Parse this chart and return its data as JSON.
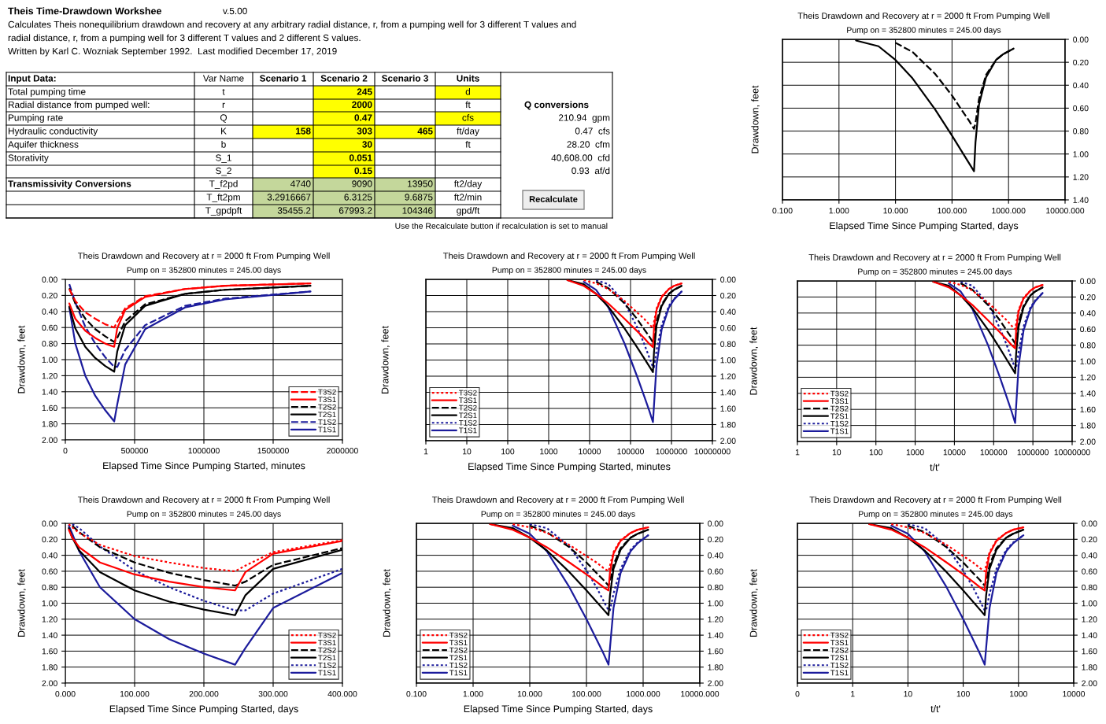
{
  "chart_data": [
    {
      "type": "other",
      "title": "Theis Time-Drawdown Workshee",
      "subtitle": "v.5.00",
      "annotations": [
        "Calculates Theis nonequilibrium drawdown and recovery at any arbitrary radial distance, r, from a pumping well for 3 different T values and",
        "radial distance, r, from a pumping well for 3 different T values and 2 different S values.",
        "Written by Karl C. Wozniak September 1992.  Last modified December 17, 2019",
        "Input Data:",
        "Var Name",
        "Scenario 1",
        "Scenario 2",
        "Scenario 3",
        "Units",
        "Total pumping time",
        "t",
        "245",
        "d",
        "Radial distance from pumped well:",
        "r",
        "2000",
        "ft",
        "Q conversions",
        "Pumping rate",
        "Q",
        "0.47",
        "cfs",
        "210.94  gpm",
        "Hydraulic conductivity",
        "K",
        "158",
        "303",
        "465",
        "ft/day",
        "0.47  cfs",
        "Aquifer thickness",
        "b",
        "30",
        "ft",
        "28.20  cfm",
        "Storativity",
        "S_1",
        "0.051",
        "40,608.00  cfd",
        "S_2",
        "0.15",
        "0.93  af/d",
        "Transmissivity Conversions",
        "T_f2pd",
        "4740",
        "9090",
        "13950",
        "ft2/day",
        "T_ft2pm",
        "3.2916667",
        "6.3125",
        "9.6875",
        "ft2/min",
        "T_gpdpft",
        "35455.2",
        "67993.2",
        "104346",
        "gpd/ft",
        "Recalculate",
        "Use the Recalculate button if recalculation is set to manual"
      ]
    },
    {
      "type": "line",
      "title": "Theis Drawdown and Recovery at r = 2000 ft From Pumping Well",
      "subtitle": "Pump on = 352800 minutes = 245.00 days",
      "xlabel": "Elapsed Time Since Pumping Started, days",
      "ylabel": "Drawdown, feet",
      "log": "x",
      "grid": true,
      "x": [
        2,
        5,
        10,
        20,
        50,
        100,
        150,
        200,
        245,
        260,
        300,
        400,
        600,
        800,
        1229
      ],
      "xlim": [
        0.1,
        10000
      ],
      "xticks": [
        {
          "value": 0.1,
          "label": "0.100"
        },
        {
          "value": 1,
          "label": "1.000"
        },
        {
          "value": 10,
          "label": "10.000"
        },
        {
          "value": 100,
          "label": "100.000"
        },
        {
          "value": 1000,
          "label": "1000.000"
        },
        {
          "value": 10000,
          "label": "10000.000"
        }
      ],
      "y2lim": [
        1.4,
        0
      ],
      "y2ticks": [
        {
          "value": 0,
          "label": "0.00"
        },
        {
          "value": 0.2,
          "label": "0.20"
        },
        {
          "value": 0.4,
          "label": "0.40"
        },
        {
          "value": 0.6,
          "label": "0.60"
        },
        {
          "value": 0.8,
          "label": "0.80"
        },
        {
          "value": 1.0,
          "label": "1.00"
        },
        {
          "value": 1.2,
          "label": "1.20"
        },
        {
          "value": 1.4,
          "label": "1.40"
        }
      ],
      "series": [
        {
          "color": "#000000",
          "line_style": "dashed",
          "axis": "y2",
          "values": [
            null,
            null,
            0.03,
            0.11,
            0.3,
            0.49,
            0.62,
            0.71,
            0.78,
            0.73,
            0.52,
            0.31,
            0.18,
            0.13,
            0.08
          ]
        },
        {
          "color": "#000000",
          "line_style": "solid",
          "axis": "y2",
          "values": [
            0.01,
            0.06,
            0.18,
            0.34,
            0.61,
            0.84,
            0.98,
            1.08,
            1.15,
            0.9,
            0.57,
            0.33,
            0.18,
            0.13,
            0.08
          ]
        }
      ]
    },
    {
      "type": "line",
      "title": "Theis Drawdown and Recovery at r = 2000 ft From Pumping Well",
      "subtitle": "Pump on = 352800 minutes = 245.00 days",
      "xlabel": "Elapsed Time Since Pumping Started, minutes",
      "ylabel": "Drawdown, feet",
      "grid": true,
      "legend": "bottom right",
      "x": [
        28800,
        72000,
        144000,
        216000,
        288000,
        352800,
        374400,
        432000,
        576000,
        864000,
        1152000,
        1769760
      ],
      "xlim": [
        0,
        2000000
      ],
      "xticks": [
        0,
        500000,
        1000000,
        1500000,
        2000000
      ],
      "ylim": [
        2,
        0
      ],
      "yticks": [
        {
          "value": 0,
          "label": "0.00"
        },
        {
          "value": 0.2,
          "label": "0.20"
        },
        {
          "value": 0.4,
          "label": "0.40"
        },
        {
          "value": 0.6,
          "label": "0.60"
        },
        {
          "value": 0.8,
          "label": "0.80"
        },
        {
          "value": 1.0,
          "label": "1.00"
        },
        {
          "value": 1.2,
          "label": "1.20"
        },
        {
          "value": 1.4,
          "label": "1.40"
        },
        {
          "value": 1.6,
          "label": "1.60"
        },
        {
          "value": 1.8,
          "label": "1.80"
        },
        {
          "value": 2.0,
          "label": "2.00"
        }
      ],
      "series": [
        {
          "name": "T3S2",
          "color": "#ff0000",
          "line_style": "dashed",
          "values": [
            0.12,
            0.27,
            0.41,
            0.49,
            0.56,
            0.6,
            0.53,
            0.36,
            0.21,
            0.12,
            0.08,
            0.05
          ]
        },
        {
          "name": "T3S1",
          "color": "#ff0000",
          "line_style": "solid",
          "values": [
            0.3,
            0.49,
            0.64,
            0.73,
            0.8,
            0.84,
            0.61,
            0.38,
            0.22,
            0.12,
            0.08,
            0.05
          ]
        },
        {
          "name": "T2S2",
          "color": "#000000",
          "line_style": "dashed",
          "values": [
            0.11,
            0.3,
            0.49,
            0.62,
            0.71,
            0.78,
            0.73,
            0.52,
            0.31,
            0.18,
            0.13,
            0.08
          ]
        },
        {
          "name": "T2S1",
          "color": "#000000",
          "line_style": "solid",
          "values": [
            0.34,
            0.61,
            0.84,
            0.98,
            1.08,
            1.15,
            0.9,
            0.57,
            0.33,
            0.18,
            0.13,
            0.08
          ]
        },
        {
          "name": "T1S2",
          "color": "#1c1c9c",
          "line_style": "dashed",
          "values": [
            0.06,
            0.29,
            0.59,
            0.8,
            0.97,
            1.09,
            1.09,
            0.88,
            0.57,
            0.33,
            0.24,
            0.15
          ]
        },
        {
          "name": "T1S1",
          "color": "#1c1c9c",
          "line_style": "solid",
          "values": [
            0.35,
            0.8,
            1.2,
            1.45,
            1.63,
            1.77,
            1.56,
            1.06,
            0.62,
            0.35,
            0.25,
            0.15
          ]
        }
      ]
    },
    {
      "type": "line",
      "title": "Theis Drawdown and Recovery at r = 2000 ft From Pumping Well",
      "subtitle": "Pump on = 352800 minutes = 245.00 days",
      "xlabel": "Elapsed Time Since Pumping Started, minutes",
      "ylabel": "Drawdown, feet",
      "log": "x",
      "grid": true,
      "legend": "bottom left",
      "x": [
        2880,
        7200,
        14400,
        28800,
        72000,
        144000,
        216000,
        288000,
        352800,
        374400,
        432000,
        576000,
        864000,
        1152000,
        1769760
      ],
      "xlim": [
        1,
        10000000
      ],
      "xticks": [
        1,
        10,
        100,
        1000,
        10000,
        100000,
        1000000,
        10000000
      ],
      "y2lim": [
        2,
        0
      ],
      "y2ticks": [
        {
          "value": 0,
          "label": "0.00"
        },
        {
          "value": 0.2,
          "label": "0.20"
        },
        {
          "value": 0.4,
          "label": "0.40"
        },
        {
          "value": 0.6,
          "label": "0.60"
        },
        {
          "value": 0.8,
          "label": "0.80"
        },
        {
          "value": 1.0,
          "label": "1.00"
        },
        {
          "value": 1.2,
          "label": "1.20"
        },
        {
          "value": 1.4,
          "label": "1.40"
        },
        {
          "value": 1.6,
          "label": "1.60"
        },
        {
          "value": 1.8,
          "label": "1.80"
        },
        {
          "value": 2.0,
          "label": "2.00"
        }
      ],
      "series": [
        {
          "name": "T3S2",
          "color": "#ff0000",
          "line_style": "dotted",
          "axis": "y2",
          "values": [
            null,
            0.01,
            0.05,
            0.12,
            0.27,
            0.41,
            0.49,
            0.56,
            0.6,
            0.53,
            0.36,
            0.21,
            0.12,
            0.08,
            0.05
          ]
        },
        {
          "name": "T3S1",
          "color": "#ff0000",
          "line_style": "solid",
          "axis": "y2",
          "values": [
            0.01,
            0.08,
            0.18,
            0.3,
            0.49,
            0.64,
            0.73,
            0.8,
            0.84,
            0.61,
            0.38,
            0.22,
            0.12,
            0.08,
            0.05
          ]
        },
        {
          "name": "T2S2",
          "color": "#000000",
          "line_style": "dashed",
          "axis": "y2",
          "values": [
            null,
            null,
            0.03,
            0.11,
            0.3,
            0.49,
            0.62,
            0.71,
            0.78,
            0.73,
            0.52,
            0.31,
            0.18,
            0.13,
            0.08
          ]
        },
        {
          "name": "T2S1",
          "color": "#000000",
          "line_style": "solid",
          "axis": "y2",
          "values": [
            0.01,
            0.06,
            0.18,
            0.34,
            0.61,
            0.84,
            0.98,
            1.08,
            1.15,
            0.9,
            0.57,
            0.33,
            0.18,
            0.13,
            0.08
          ]
        },
        {
          "name": "T1S2",
          "color": "#1c1c9c",
          "line_style": "dotted",
          "axis": "y2",
          "values": [
            null,
            null,
            0.01,
            0.06,
            0.29,
            0.59,
            0.8,
            0.97,
            1.09,
            1.09,
            0.88,
            0.57,
            0.33,
            0.24,
            0.15
          ]
        },
        {
          "name": "T1S1",
          "color": "#1c1c9c",
          "line_style": "solid",
          "axis": "y2",
          "values": [
            null,
            0.03,
            0.13,
            0.35,
            0.8,
            1.2,
            1.45,
            1.63,
            1.77,
            1.56,
            1.06,
            0.62,
            0.35,
            0.25,
            0.15
          ]
        }
      ]
    },
    {
      "type": "line",
      "title": "Theis Drawdown and Recovery at r = 2000 ft From Pumping Well",
      "subtitle": "Pump on = 352800 minutes = 245.00 days",
      "xlabel": "t/t'",
      "ylabel": "Drawdown, feet",
      "log": "x",
      "grid": true,
      "legend": "bottom left",
      "x": [
        2880,
        7200,
        14400,
        28800,
        72000,
        144000,
        216000,
        288000,
        352800,
        374400,
        432000,
        576000,
        864000,
        1152000,
        1769760
      ],
      "xlim": [
        1,
        10000000
      ],
      "xticks": [
        1,
        10,
        100,
        1000,
        10000,
        100000,
        1000000,
        10000000
      ],
      "y2lim": [
        2,
        0
      ],
      "y2ticks": [
        {
          "value": 0,
          "label": "0.00"
        },
        {
          "value": 0.2,
          "label": "0.20"
        },
        {
          "value": 0.4,
          "label": "0.40"
        },
        {
          "value": 0.6,
          "label": "0.60"
        },
        {
          "value": 0.8,
          "label": "0.80"
        },
        {
          "value": 1.0,
          "label": "1.00"
        },
        {
          "value": 1.2,
          "label": "1.20"
        },
        {
          "value": 1.4,
          "label": "1.40"
        },
        {
          "value": 1.6,
          "label": "1.60"
        },
        {
          "value": 1.8,
          "label": "1.80"
        },
        {
          "value": 2.0,
          "label": "2.00"
        }
      ],
      "series": [
        {
          "name": "T3S2",
          "color": "#ff0000",
          "line_style": "dotted",
          "axis": "y2",
          "values": [
            null,
            0.01,
            0.05,
            0.12,
            0.27,
            0.41,
            0.49,
            0.56,
            0.6,
            0.53,
            0.36,
            0.21,
            0.12,
            0.08,
            0.05
          ]
        },
        {
          "name": "T3S1",
          "color": "#ff0000",
          "line_style": "solid",
          "axis": "y2",
          "values": [
            0.01,
            0.08,
            0.18,
            0.3,
            0.49,
            0.64,
            0.73,
            0.8,
            0.84,
            0.61,
            0.38,
            0.22,
            0.12,
            0.08,
            0.05
          ]
        },
        {
          "name": "T2S2",
          "color": "#000000",
          "line_style": "dashed",
          "axis": "y2",
          "values": [
            null,
            null,
            0.03,
            0.11,
            0.3,
            0.49,
            0.62,
            0.71,
            0.78,
            0.73,
            0.52,
            0.31,
            0.18,
            0.13,
            0.08
          ]
        },
        {
          "name": "T2S1",
          "color": "#000000",
          "line_style": "solid",
          "axis": "y2",
          "values": [
            0.01,
            0.06,
            0.18,
            0.34,
            0.61,
            0.84,
            0.98,
            1.08,
            1.15,
            0.9,
            0.57,
            0.33,
            0.18,
            0.13,
            0.08
          ]
        },
        {
          "name": "T1S2",
          "color": "#1c1c9c",
          "line_style": "dotted",
          "axis": "y2",
          "values": [
            null,
            null,
            0.01,
            0.06,
            0.29,
            0.59,
            0.8,
            0.97,
            1.09,
            1.09,
            0.88,
            0.57,
            0.33,
            0.24,
            0.15
          ]
        },
        {
          "name": "T1S1",
          "color": "#1c1c9c",
          "line_style": "solid",
          "axis": "y2",
          "values": [
            null,
            0.03,
            0.13,
            0.35,
            0.8,
            1.2,
            1.45,
            1.63,
            1.77,
            1.56,
            1.06,
            0.62,
            0.35,
            0.25,
            0.15
          ]
        }
      ]
    },
    {
      "type": "line",
      "title": "Theis Drawdown and Recovery at r = 2000 ft From Pumping Well",
      "subtitle": "Pump on = 352800 minutes = 245.00 days",
      "xlabel": "Elapsed Time Since Pumping Started, days",
      "ylabel": "Drawdown, feet",
      "grid": true,
      "legend": "bottom right",
      "x": [
        5,
        10,
        20,
        50,
        100,
        150,
        200,
        245,
        260,
        300,
        400
      ],
      "xlim": [
        0,
        400
      ],
      "xticks": [
        {
          "value": 0,
          "label": "0.000"
        },
        {
          "value": 100,
          "label": "100.000"
        },
        {
          "value": 200,
          "label": "200.000"
        },
        {
          "value": 300,
          "label": "300.000"
        },
        {
          "value": 400,
          "label": "400.000"
        }
      ],
      "ylim": [
        2,
        0
      ],
      "yticks": [
        {
          "value": 0,
          "label": "0.00"
        },
        {
          "value": 0.2,
          "label": "0.20"
        },
        {
          "value": 0.4,
          "label": "0.40"
        },
        {
          "value": 0.6,
          "label": "0.60"
        },
        {
          "value": 0.8,
          "label": "0.80"
        },
        {
          "value": 1.0,
          "label": "1.00"
        },
        {
          "value": 1.2,
          "label": "1.20"
        },
        {
          "value": 1.4,
          "label": "1.40"
        },
        {
          "value": 1.6,
          "label": "1.60"
        },
        {
          "value": 1.8,
          "label": "1.80"
        },
        {
          "value": 2.0,
          "label": "2.00"
        }
      ],
      "series": [
        {
          "name": "T3S2",
          "color": "#ff0000",
          "line_style": "dotted",
          "values": [
            0.01,
            0.05,
            0.12,
            0.27,
            0.41,
            0.49,
            0.56,
            0.6,
            0.53,
            0.36,
            0.21
          ]
        },
        {
          "name": "T3S1",
          "color": "#ff0000",
          "line_style": "solid",
          "values": [
            0.08,
            0.18,
            0.3,
            0.49,
            0.64,
            0.73,
            0.8,
            0.84,
            0.61,
            0.38,
            0.22
          ]
        },
        {
          "name": "T2S2",
          "color": "#000000",
          "line_style": "dashed",
          "values": [
            null,
            0.03,
            0.11,
            0.3,
            0.49,
            0.62,
            0.71,
            0.78,
            0.73,
            0.52,
            0.31
          ]
        },
        {
          "name": "T2S1",
          "color": "#000000",
          "line_style": "solid",
          "values": [
            0.06,
            0.18,
            0.34,
            0.61,
            0.84,
            0.98,
            1.08,
            1.15,
            0.9,
            0.57,
            0.33
          ]
        },
        {
          "name": "T1S2",
          "color": "#1c1c9c",
          "line_style": "dotted",
          "values": [
            null,
            0.01,
            0.06,
            0.29,
            0.59,
            0.8,
            0.97,
            1.09,
            1.09,
            0.88,
            0.57
          ]
        },
        {
          "name": "T1S1",
          "color": "#1c1c9c",
          "line_style": "solid",
          "values": [
            0.03,
            0.13,
            0.35,
            0.8,
            1.2,
            1.45,
            1.63,
            1.77,
            1.56,
            1.06,
            0.62
          ]
        }
      ]
    },
    {
      "type": "line",
      "title": "Theis Drawdown and Recovery at r = 2000 ft From Pumping Well",
      "subtitle": "Pump on = 352800 minutes = 245.00 days",
      "xlabel": "Elapsed Time Since Pumping Started, days",
      "ylabel": "Drawdown, feet",
      "log": "x",
      "grid": true,
      "legend": "bottom left",
      "x": [
        2,
        5,
        10,
        20,
        50,
        100,
        150,
        200,
        245,
        260,
        300,
        400,
        600,
        800,
        1229
      ],
      "xlim": [
        0.1,
        10000
      ],
      "xticks": [
        {
          "value": 0.1,
          "label": "0.100"
        },
        {
          "value": 1,
          "label": "1.000"
        },
        {
          "value": 10,
          "label": "10.000"
        },
        {
          "value": 100,
          "label": "100.000"
        },
        {
          "value": 1000,
          "label": "1000.000"
        },
        {
          "value": 10000,
          "label": "10000.000"
        }
      ],
      "y2lim": [
        2,
        0
      ],
      "y2ticks": [
        {
          "value": 0,
          "label": "0.00"
        },
        {
          "value": 0.2,
          "label": "0.20"
        },
        {
          "value": 0.4,
          "label": "0.40"
        },
        {
          "value": 0.6,
          "label": "0.60"
        },
        {
          "value": 0.8,
          "label": "0.80"
        },
        {
          "value": 1.0,
          "label": "1.00"
        },
        {
          "value": 1.2,
          "label": "1.20"
        },
        {
          "value": 1.4,
          "label": "1.40"
        },
        {
          "value": 1.6,
          "label": "1.60"
        },
        {
          "value": 1.8,
          "label": "1.80"
        },
        {
          "value": 2.0,
          "label": "2.00"
        }
      ],
      "series": [
        {
          "name": "T3S2",
          "color": "#ff0000",
          "line_style": "dotted",
          "axis": "y2",
          "values": [
            null,
            0.01,
            0.05,
            0.12,
            0.27,
            0.41,
            0.49,
            0.56,
            0.6,
            0.53,
            0.36,
            0.21,
            0.12,
            0.08,
            0.05
          ]
        },
        {
          "name": "T3S1",
          "color": "#ff0000",
          "line_style": "solid",
          "axis": "y2",
          "values": [
            0.01,
            0.08,
            0.18,
            0.3,
            0.49,
            0.64,
            0.73,
            0.8,
            0.84,
            0.61,
            0.38,
            0.22,
            0.12,
            0.08,
            0.05
          ]
        },
        {
          "name": "T2S2",
          "color": "#000000",
          "line_style": "dashed",
          "axis": "y2",
          "values": [
            null,
            null,
            0.03,
            0.11,
            0.3,
            0.49,
            0.62,
            0.71,
            0.78,
            0.73,
            0.52,
            0.31,
            0.18,
            0.13,
            0.08
          ]
        },
        {
          "name": "T2S1",
          "color": "#000000",
          "line_style": "solid",
          "axis": "y2",
          "values": [
            0.01,
            0.06,
            0.18,
            0.34,
            0.61,
            0.84,
            0.98,
            1.08,
            1.15,
            0.9,
            0.57,
            0.33,
            0.18,
            0.13,
            0.08
          ]
        },
        {
          "name": "T1S2",
          "color": "#1c1c9c",
          "line_style": "dotted",
          "axis": "y2",
          "values": [
            null,
            null,
            0.01,
            0.06,
            0.29,
            0.59,
            0.8,
            0.97,
            1.09,
            1.09,
            0.88,
            0.57,
            0.33,
            0.24,
            0.15
          ]
        },
        {
          "name": "T1S1",
          "color": "#1c1c9c",
          "line_style": "solid",
          "axis": "y2",
          "values": [
            null,
            0.03,
            0.13,
            0.35,
            0.8,
            1.2,
            1.45,
            1.63,
            1.77,
            1.56,
            1.06,
            0.62,
            0.35,
            0.25,
            0.15
          ]
        }
      ]
    },
    {
      "type": "line",
      "title": "Theis Drawdown and Recovery at r = 2000 ft From Pumping Well",
      "subtitle": "Pump on = 352800 minutes = 245.00 days",
      "xlabel": "t/t'",
      "ylabel": "Drawdown, feet",
      "log": "x",
      "grid": true,
      "legend": "bottom left",
      "x": [
        2,
        5,
        10,
        20,
        50,
        100,
        150,
        200,
        245,
        260,
        300,
        400,
        600,
        800,
        1229
      ],
      "xlim": [
        0.1,
        10000
      ],
      "xticks": [
        {
          "value": 0.1,
          "label": "0"
        },
        1,
        10,
        100,
        1000,
        10000
      ],
      "y2lim": [
        2,
        0
      ],
      "y2ticks": [
        {
          "value": 0,
          "label": "0.00"
        },
        {
          "value": 0.2,
          "label": "0.20"
        },
        {
          "value": 0.4,
          "label": "0.40"
        },
        {
          "value": 0.6,
          "label": "0.60"
        },
        {
          "value": 0.8,
          "label": "0.80"
        },
        {
          "value": 1.0,
          "label": "1.00"
        },
        {
          "value": 1.2,
          "label": "1.20"
        },
        {
          "value": 1.4,
          "label": "1.40"
        },
        {
          "value": 1.6,
          "label": "1.60"
        },
        {
          "value": 1.8,
          "label": "1.80"
        },
        {
          "value": 2.0,
          "label": "2.00"
        }
      ],
      "series": [
        {
          "name": "T3S2",
          "color": "#ff0000",
          "line_style": "dotted",
          "axis": "y2",
          "values": [
            null,
            0.01,
            0.05,
            0.12,
            0.27,
            0.41,
            0.49,
            0.56,
            0.6,
            0.53,
            0.36,
            0.21,
            0.12,
            0.08,
            0.05
          ]
        },
        {
          "name": "T3S1",
          "color": "#ff0000",
          "line_style": "solid",
          "axis": "y2",
          "values": [
            0.01,
            0.08,
            0.18,
            0.3,
            0.49,
            0.64,
            0.73,
            0.8,
            0.84,
            0.61,
            0.38,
            0.22,
            0.12,
            0.08,
            0.05
          ]
        },
        {
          "name": "T2S2",
          "color": "#000000",
          "line_style": "dashed",
          "axis": "y2",
          "values": [
            null,
            null,
            0.03,
            0.11,
            0.3,
            0.49,
            0.62,
            0.71,
            0.78,
            0.73,
            0.52,
            0.31,
            0.18,
            0.13,
            0.08
          ]
        },
        {
          "name": "T2S1",
          "color": "#000000",
          "line_style": "solid",
          "axis": "y2",
          "values": [
            0.01,
            0.06,
            0.18,
            0.34,
            0.61,
            0.84,
            0.98,
            1.08,
            1.15,
            0.9,
            0.57,
            0.33,
            0.18,
            0.13,
            0.08
          ]
        },
        {
          "name": "T1S2",
          "color": "#1c1c9c",
          "line_style": "dotted",
          "axis": "y2",
          "values": [
            null,
            null,
            0.01,
            0.06,
            0.29,
            0.59,
            0.8,
            0.97,
            1.09,
            1.09,
            0.88,
            0.57,
            0.33,
            0.24,
            0.15
          ]
        },
        {
          "name": "T1S1",
          "color": "#1c1c9c",
          "line_style": "solid",
          "axis": "y2",
          "values": [
            null,
            0.03,
            0.13,
            0.35,
            0.8,
            1.2,
            1.45,
            1.63,
            1.77,
            1.56,
            1.06,
            0.62,
            0.35,
            0.25,
            0.15
          ]
        }
      ]
    }
  ]
}
